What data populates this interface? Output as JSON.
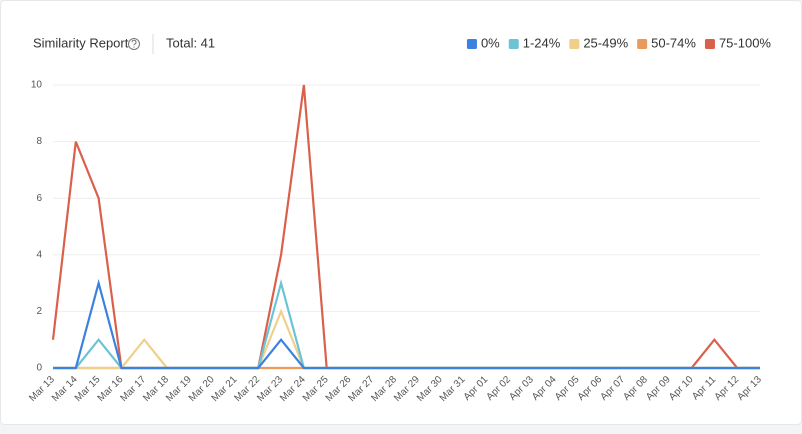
{
  "header": {
    "title": "Similarity Report",
    "total": "Total: 41"
  },
  "chart_data": {
    "type": "line",
    "categories": [
      "Mar 13",
      "Mar 14",
      "Mar 15",
      "Mar 16",
      "Mar 17",
      "Mar 18",
      "Mar 19",
      "Mar 20",
      "Mar 21",
      "Mar 22",
      "Mar 23",
      "Mar 24",
      "Mar 25",
      "Mar 26",
      "Mar 27",
      "Mar 28",
      "Mar 29",
      "Mar 30",
      "Mar 31",
      "Apr 01",
      "Apr 02",
      "Apr 03",
      "Apr 04",
      "Apr 05",
      "Apr 06",
      "Apr 07",
      "Apr 08",
      "Apr 09",
      "Apr 10",
      "Apr 11",
      "Apr 12",
      "Apr 13"
    ],
    "series": [
      {
        "name": "0%",
        "color": "#3b82e0",
        "values": [
          0,
          0,
          3,
          0,
          0,
          0,
          0,
          0,
          0,
          0,
          1,
          0,
          0,
          0,
          0,
          0,
          0,
          0,
          0,
          0,
          0,
          0,
          0,
          0,
          0,
          0,
          0,
          0,
          0,
          0,
          0,
          0
        ]
      },
      {
        "name": "1-24%",
        "color": "#6cc3d5",
        "values": [
          0,
          0,
          1,
          0,
          0,
          0,
          0,
          0,
          0,
          0,
          3,
          0,
          0,
          0,
          0,
          0,
          0,
          0,
          0,
          0,
          0,
          0,
          0,
          0,
          0,
          0,
          0,
          0,
          0,
          0,
          0,
          0
        ]
      },
      {
        "name": "25-49%",
        "color": "#f0cf8a",
        "values": [
          0,
          0,
          0,
          0,
          1,
          0,
          0,
          0,
          0,
          0,
          2,
          0,
          0,
          0,
          0,
          0,
          0,
          0,
          0,
          0,
          0,
          0,
          0,
          0,
          0,
          0,
          0,
          0,
          0,
          0,
          0,
          0
        ]
      },
      {
        "name": "50-74%",
        "color": "#ec9a5a",
        "values": [
          0,
          0,
          0,
          0,
          0,
          0,
          0,
          0,
          0,
          0,
          0,
          0,
          0,
          0,
          0,
          0,
          0,
          0,
          0,
          0,
          0,
          0,
          0,
          0,
          0,
          0,
          0,
          0,
          0,
          0,
          0,
          0
        ]
      },
      {
        "name": "75-100%",
        "color": "#d9614c",
        "values": [
          1,
          8,
          6,
          0,
          0,
          0,
          0,
          0,
          0,
          0,
          4,
          10,
          0,
          0,
          0,
          0,
          0,
          0,
          0,
          0,
          0,
          0,
          0,
          0,
          0,
          0,
          0,
          0,
          0,
          1,
          0,
          0
        ]
      }
    ],
    "ylim": [
      0,
      10
    ],
    "yticks": [
      0,
      2,
      4,
      6,
      8,
      10
    ],
    "grid": true,
    "legend": "top-right"
  }
}
